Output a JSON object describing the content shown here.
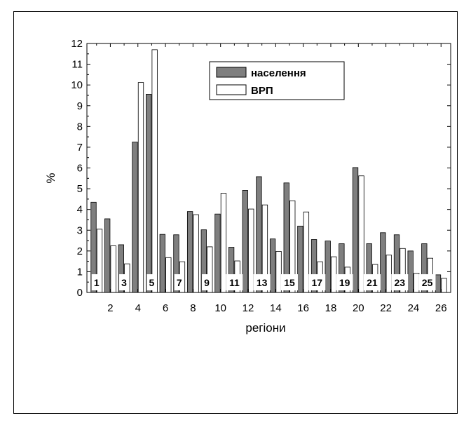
{
  "chart_data": {
    "type": "bar",
    "xlabel": "регіони",
    "ylabel": "%",
    "ylim": [
      0,
      12
    ],
    "xlim": [
      0.3,
      26.7
    ],
    "x_ticks": [
      2,
      4,
      6,
      8,
      10,
      12,
      14,
      16,
      18,
      20,
      22,
      24,
      26
    ],
    "y_ticks": [
      0,
      1,
      2,
      3,
      4,
      5,
      6,
      7,
      8,
      9,
      10,
      11,
      12
    ],
    "categories": [
      1,
      2,
      3,
      4,
      5,
      6,
      7,
      8,
      9,
      10,
      11,
      12,
      13,
      14,
      15,
      16,
      17,
      18,
      19,
      20,
      21,
      22,
      23,
      24,
      25,
      26
    ],
    "series": [
      {
        "name": "населення",
        "color": "#7f7f7f",
        "values": [
          4.35,
          3.55,
          2.3,
          7.25,
          9.55,
          2.8,
          2.78,
          3.9,
          3.02,
          3.78,
          2.18,
          4.92,
          5.58,
          2.58,
          5.28,
          3.2,
          2.55,
          2.48,
          2.35,
          6.02,
          2.35,
          2.88,
          2.78,
          2.0,
          2.35,
          0.85
        ]
      },
      {
        "name": "ВРП",
        "color": "#ffffff",
        "values": [
          3.05,
          2.25,
          1.38,
          10.12,
          11.7,
          1.68,
          1.48,
          3.75,
          2.2,
          4.78,
          1.52,
          4.02,
          4.22,
          1.98,
          4.42,
          3.88,
          1.48,
          1.72,
          1.22,
          5.62,
          1.35,
          1.8,
          2.12,
          0.92,
          1.65,
          0.68
        ]
      }
    ],
    "box_labels": [
      "1",
      "3",
      "5",
      "7",
      "9",
      "11",
      "13",
      "15",
      "17",
      "19",
      "21",
      "23",
      "25"
    ],
    "box_label_regions": [
      1,
      3,
      5,
      7,
      9,
      11,
      13,
      15,
      17,
      19,
      21,
      23,
      25
    ],
    "legend": {
      "placement": "top-center",
      "entries": [
        "населення",
        "ВРП"
      ]
    },
    "grid": false
  }
}
